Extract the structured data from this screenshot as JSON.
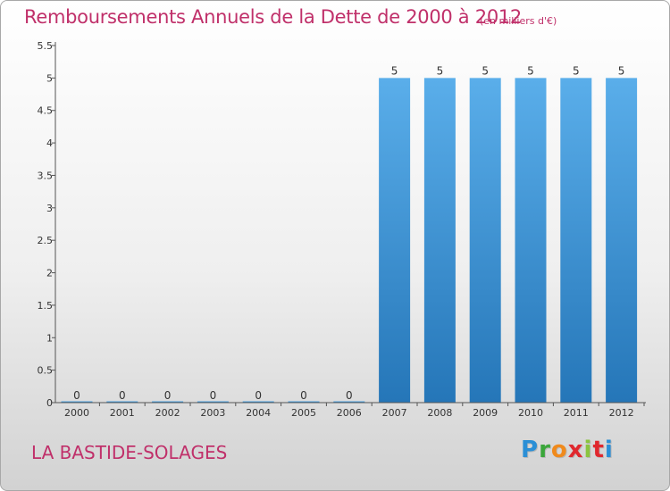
{
  "title": "Remboursements Annuels de la Dette de 2000 à 2012",
  "subtitle": "(en milliers d'€)",
  "location": "LA BASTIDE-SOLAGES",
  "logo": {
    "letters": [
      "P",
      "r",
      "o",
      "x",
      "i",
      "t",
      "i"
    ],
    "colors": [
      "#2b8fd6",
      "#3aa63a",
      "#f08a1c",
      "#e0282e",
      "#8bc43f",
      "#e0282e",
      "#2b8fd6"
    ]
  },
  "colors": {
    "title": "#c0306a",
    "bar_light": "#5aaeea",
    "bar_dark": "#2576b8",
    "axis": "#555555"
  },
  "chart_data": {
    "type": "bar",
    "categories": [
      "2000",
      "2001",
      "2002",
      "2003",
      "2004",
      "2005",
      "2006",
      "2007",
      "2008",
      "2009",
      "2010",
      "2011",
      "2012"
    ],
    "values": [
      0,
      0,
      0,
      0,
      0,
      0,
      0,
      5,
      5,
      5,
      5,
      5,
      5
    ],
    "data_labels": [
      "0",
      "0",
      "0",
      "0",
      "0",
      "0",
      "0",
      "5",
      "5",
      "5",
      "5",
      "5",
      "5"
    ],
    "yticks": [
      "0",
      "0.5",
      "1",
      "1.5",
      "2",
      "2.5",
      "3",
      "3.5",
      "4",
      "4.5",
      "5",
      "5.5"
    ],
    "ylim": [
      0,
      5.5
    ],
    "xlabel": "",
    "ylabel": "",
    "grid": false,
    "legend": "none"
  }
}
